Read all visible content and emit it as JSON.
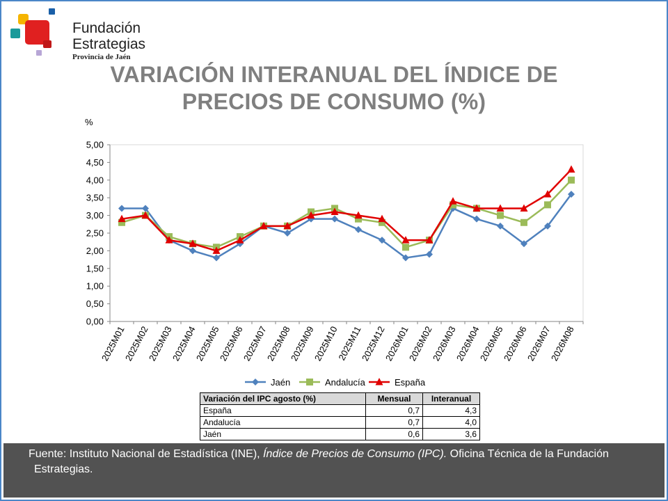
{
  "logo": {
    "line1": "Fundación",
    "line2": "Estrategias",
    "line3": "Provincia de Jaén"
  },
  "title": {
    "line1": "VARIACIÓN INTERANUAL DEL ÍNDICE DE",
    "line2": "PRECIOS DE CONSUMO (%)"
  },
  "chart_data": {
    "type": "line",
    "ylabel": "%",
    "ylim": [
      0,
      5
    ],
    "ytick_step": 0.5,
    "yticks": [
      "0,00",
      "0,50",
      "1,00",
      "1,50",
      "2,00",
      "2,50",
      "3,00",
      "3,50",
      "4,00",
      "4,50",
      "5,00"
    ],
    "grid": false,
    "legend_position": "bottom",
    "categories": [
      "2025M01",
      "2025M02",
      "2025M03",
      "2025M04",
      "2025M05",
      "2025M06",
      "2025M07",
      "2025M08",
      "2025M09",
      "2025M10",
      "2025M11",
      "2025M12",
      "2026M01",
      "2026M02",
      "2026M03",
      "2026M04",
      "2026M05",
      "2026M06",
      "2026M07",
      "2026M08"
    ],
    "series": [
      {
        "name": "Jaén",
        "color": "#4f81bd",
        "marker": "diamond",
        "values": [
          3.2,
          3.2,
          2.3,
          2.0,
          1.8,
          2.2,
          2.7,
          2.5,
          2.9,
          2.9,
          2.6,
          2.3,
          1.8,
          1.9,
          3.2,
          2.9,
          2.7,
          2.2,
          2.7,
          3.6
        ]
      },
      {
        "name": "Andalucía",
        "color": "#9bbb59",
        "marker": "square",
        "values": [
          2.8,
          3.0,
          2.4,
          2.2,
          2.1,
          2.4,
          2.7,
          2.7,
          3.1,
          3.2,
          2.9,
          2.8,
          2.1,
          2.3,
          3.3,
          3.2,
          3.0,
          2.8,
          3.3,
          4.0
        ]
      },
      {
        "name": "España",
        "color": "#e00000",
        "marker": "triangle",
        "values": [
          2.9,
          3.0,
          2.3,
          2.2,
          2.0,
          2.3,
          2.7,
          2.7,
          3.0,
          3.1,
          3.0,
          2.9,
          2.3,
          2.3,
          3.4,
          3.2,
          3.2,
          3.2,
          3.6,
          4.3
        ]
      }
    ]
  },
  "summary_table": {
    "headers": [
      "Variación del IPC agosto (%)",
      "Mensual",
      "Interanual"
    ],
    "rows": [
      [
        "España",
        "0,7",
        "4,3"
      ],
      [
        "Andalucía",
        "0,7",
        "4,0"
      ],
      [
        "Jaén",
        "0,6",
        "3,6"
      ]
    ]
  },
  "footer": {
    "prefix": "Fuente: Instituto Nacional de Estadística (INE), ",
    "italic": "Índice de Precios de Consumo (IPC).",
    "suffix_line1": " Oficina Técnica de la Fundación",
    "line2": "Estrategias."
  }
}
